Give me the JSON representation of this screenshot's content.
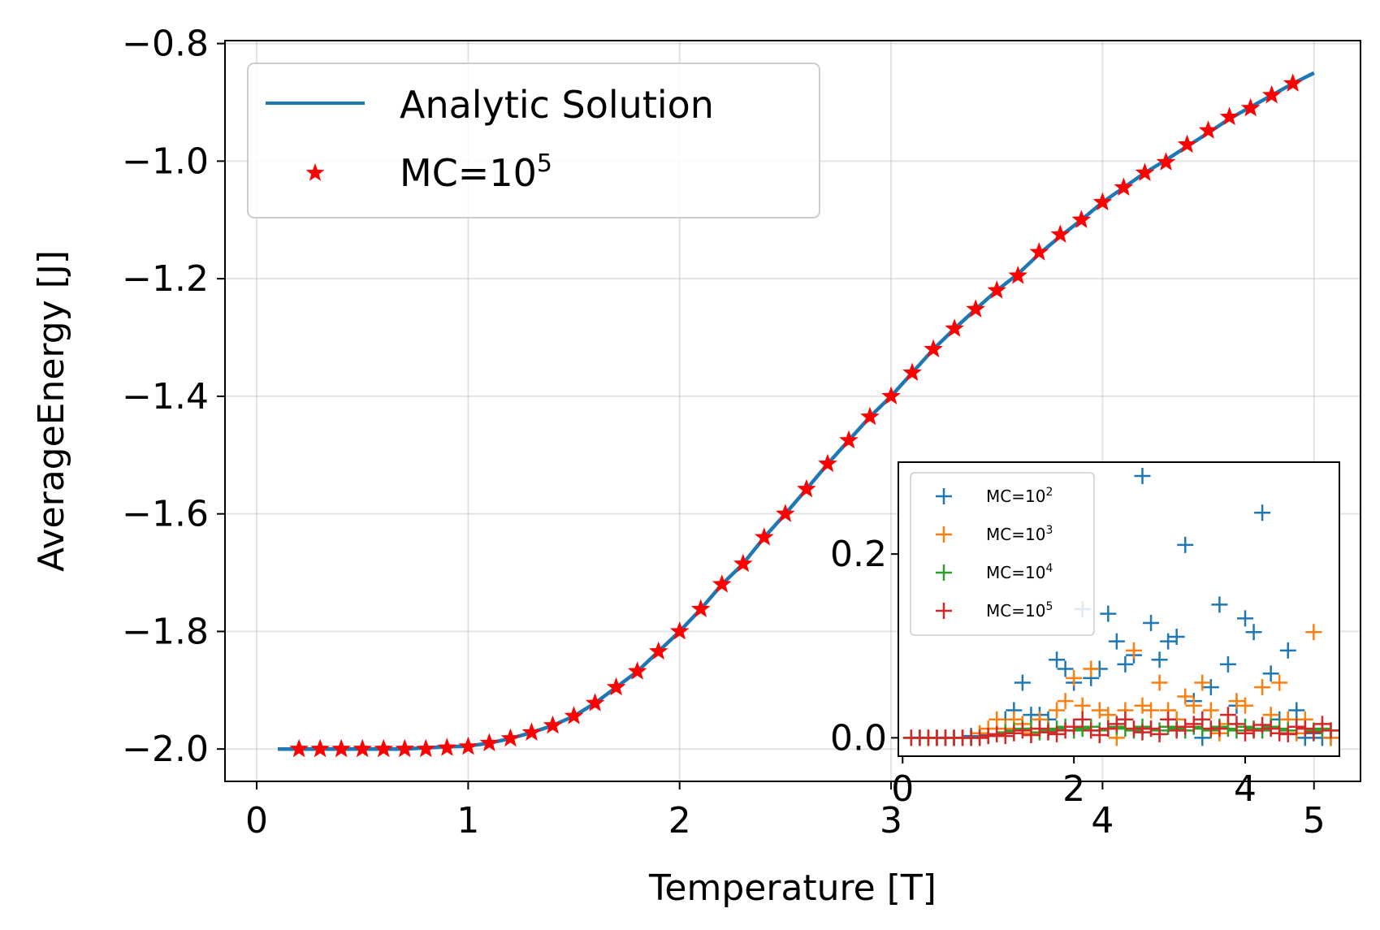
{
  "chart_data": [
    {
      "type": "line",
      "role": "main",
      "xlabel": "Temperature [T]",
      "ylabel": "AverageEnergy [J]",
      "xlim": [
        -0.15,
        5.22
      ],
      "ylim": [
        -2.055,
        -0.795
      ],
      "x_ticks": [
        0,
        1,
        2,
        3,
        4,
        5
      ],
      "x_tick_labels": [
        "0",
        "1",
        "2",
        "3",
        "4",
        "5"
      ],
      "y_ticks": [
        -2.0,
        -1.8,
        -1.6,
        -1.4,
        -1.2,
        -1.0,
        -0.8
      ],
      "y_tick_labels": [
        "−2.0",
        "−1.8",
        "−1.6",
        "−1.4",
        "−1.2",
        "−1.0",
        "−0.8"
      ],
      "grid": true,
      "legend_position": "upper-left",
      "series": [
        {
          "name": "Analytic Solution",
          "kind": "line",
          "color": "#1f77b4",
          "x": [
            0.1,
            0.2,
            0.3,
            0.4,
            0.5,
            0.6,
            0.7,
            0.8,
            0.9,
            1.0,
            1.1,
            1.2,
            1.3,
            1.4,
            1.5,
            1.6,
            1.7,
            1.8,
            1.9,
            2.0,
            2.1,
            2.2,
            2.3,
            2.4,
            2.5,
            2.6,
            2.7,
            2.8,
            2.9,
            3.0,
            3.1,
            3.2,
            3.3,
            3.4,
            3.5,
            3.6,
            3.7,
            3.8,
            3.9,
            4.0,
            4.1,
            4.2,
            4.3,
            4.4,
            4.5,
            4.6,
            4.7,
            4.8,
            4.9,
            5.0
          ],
          "y": [
            -2.0,
            -2.0,
            -2.0,
            -2.0,
            -2.0,
            -2.0,
            -2.0,
            -1.998,
            -1.996,
            -1.995,
            -1.99,
            -1.982,
            -1.972,
            -1.96,
            -1.944,
            -1.922,
            -1.895,
            -1.868,
            -1.834,
            -1.8,
            -1.762,
            -1.72,
            -1.685,
            -1.64,
            -1.6,
            -1.558,
            -1.515,
            -1.475,
            -1.435,
            -1.4,
            -1.36,
            -1.32,
            -1.285,
            -1.252,
            -1.22,
            -1.192,
            -1.158,
            -1.128,
            -1.1,
            -1.07,
            -1.045,
            -1.02,
            -0.998,
            -0.975,
            -0.952,
            -0.928,
            -0.908,
            -0.888,
            -0.868,
            -0.85
          ]
        },
        {
          "name": "MC=10",
          "name_superscript": "5",
          "kind": "star-marker",
          "color": "#ff0000",
          "x": [
            0.2,
            0.3,
            0.4,
            0.5,
            0.6,
            0.7,
            0.8,
            0.9,
            1.0,
            1.1,
            1.2,
            1.3,
            1.4,
            1.5,
            1.6,
            1.7,
            1.8,
            1.9,
            2.0,
            2.1,
            2.2,
            2.3,
            2.4,
            2.5,
            2.6,
            2.7,
            2.8,
            2.9,
            3.0,
            3.1,
            3.2,
            3.3,
            3.4,
            3.5,
            3.6,
            3.7,
            3.8,
            3.9,
            4.0,
            4.1,
            4.2,
            4.3,
            4.4,
            4.5,
            4.6,
            4.7,
            4.8,
            4.9
          ],
          "y": [
            -2.0,
            -2.0,
            -2.0,
            -2.0,
            -2.0,
            -2.0,
            -2.0,
            -1.998,
            -1.996,
            -1.99,
            -1.982,
            -1.972,
            -1.96,
            -1.944,
            -1.922,
            -1.895,
            -1.868,
            -1.834,
            -1.8,
            -1.762,
            -1.72,
            -1.685,
            -1.64,
            -1.6,
            -1.558,
            -1.515,
            -1.475,
            -1.435,
            -1.4,
            -1.36,
            -1.32,
            -1.285,
            -1.252,
            -1.22,
            -1.195,
            -1.155,
            -1.125,
            -1.1,
            -1.07,
            -1.045,
            -1.02,
            -1.002,
            -0.972,
            -0.948,
            -0.925,
            -0.91,
            -0.888,
            -0.868
          ]
        }
      ]
    },
    {
      "type": "scatter",
      "role": "inset",
      "legend_position": "upper-left",
      "xlim": [
        -0.05,
        5.1
      ],
      "ylim": [
        -0.02,
        0.3
      ],
      "x_ticks": [
        0,
        2,
        4
      ],
      "x_tick_labels": [
        "0",
        "2",
        "4"
      ],
      "y_ticks": [
        0.0,
        0.2
      ],
      "y_tick_labels": [
        "0.0",
        "0.2"
      ],
      "grid": false,
      "series": [
        {
          "name": "MC=10",
          "name_superscript": "2",
          "color": "#1f77b4",
          "x": [
            0.1,
            0.2,
            0.3,
            0.4,
            0.5,
            0.6,
            0.7,
            0.8,
            0.9,
            1.0,
            1.1,
            1.2,
            1.3,
            1.4,
            1.5,
            1.6,
            1.7,
            1.8,
            1.9,
            2.0,
            2.1,
            2.2,
            2.3,
            2.4,
            2.5,
            2.6,
            2.7,
            2.8,
            2.9,
            3.0,
            3.1,
            3.2,
            3.3,
            3.4,
            3.5,
            3.6,
            3.7,
            3.8,
            3.9,
            4.0,
            4.1,
            4.2,
            4.3,
            4.4,
            4.5,
            4.6,
            4.7,
            4.8,
            4.9,
            5.0
          ],
          "y": [
            0.0,
            0.0,
            0.0,
            0.0,
            0.0,
            0.0,
            0.0,
            0.002,
            0.0,
            0.003,
            0.01,
            0.02,
            0.03,
            0.06,
            0.025,
            0.025,
            0.02,
            0.085,
            0.075,
            0.06,
            0.14,
            0.065,
            0.075,
            0.135,
            0.105,
            0.08,
            0.09,
            0.285,
            0.125,
            0.085,
            0.105,
            0.11,
            0.21,
            0.04,
            0.0,
            0.055,
            0.145,
            0.08,
            0.035,
            0.13,
            0.115,
            0.245,
            0.07,
            0.02,
            0.095,
            0.03,
            0.0,
            0.005,
            0.0,
            0.0
          ]
        },
        {
          "name": "MC=10",
          "name_superscript": "3",
          "color": "#ff7f0e",
          "x": [
            0.1,
            0.2,
            0.3,
            0.4,
            0.5,
            0.6,
            0.7,
            0.8,
            0.9,
            1.0,
            1.1,
            1.2,
            1.3,
            1.4,
            1.5,
            1.6,
            1.7,
            1.8,
            1.9,
            2.0,
            2.1,
            2.2,
            2.3,
            2.4,
            2.5,
            2.6,
            2.7,
            2.8,
            2.9,
            3.0,
            3.1,
            3.2,
            3.3,
            3.4,
            3.5,
            3.6,
            3.7,
            3.8,
            3.9,
            4.0,
            4.1,
            4.2,
            4.3,
            4.4,
            4.5,
            4.6,
            4.7,
            4.8,
            4.9,
            5.0
          ],
          "y": [
            0.0,
            0.0,
            0.0,
            0.0,
            0.0,
            0.0,
            0.0,
            0.0,
            0.005,
            0.01,
            0.02,
            0.01,
            0.02,
            0.015,
            0.005,
            0.02,
            0.01,
            0.03,
            0.04,
            0.065,
            0.035,
            0.075,
            0.03,
            0.025,
            0.0,
            0.03,
            0.095,
            0.035,
            0.03,
            0.06,
            0.03,
            0.02,
            0.045,
            0.035,
            0.06,
            0.03,
            0.005,
            0.015,
            0.04,
            0.035,
            0.01,
            0.055,
            0.025,
            0.06,
            0.02,
            0.005,
            0.02,
            0.115,
            0.01,
            0.0
          ]
        },
        {
          "name": "MC=10",
          "name_superscript": "4",
          "color": "#2ca02c",
          "x": [
            0.1,
            0.2,
            0.3,
            0.4,
            0.5,
            0.6,
            0.7,
            0.8,
            0.9,
            1.0,
            1.1,
            1.2,
            1.3,
            1.4,
            1.5,
            1.6,
            1.7,
            1.8,
            1.9,
            2.0,
            2.1,
            2.2,
            2.3,
            2.4,
            2.5,
            2.6,
            2.7,
            2.8,
            2.9,
            3.0,
            3.1,
            3.2,
            3.3,
            3.4,
            3.5,
            3.6,
            3.7,
            3.8,
            3.9,
            4.0,
            4.1,
            4.2,
            4.3,
            4.4,
            4.5,
            4.6,
            4.7,
            4.8,
            4.9,
            5.0
          ],
          "y": [
            0.0,
            0.0,
            0.0,
            0.0,
            0.0,
            0.0,
            0.0,
            0.0,
            0.0,
            0.002,
            0.004,
            0.006,
            0.008,
            0.01,
            0.01,
            0.006,
            0.008,
            0.01,
            0.012,
            0.008,
            0.01,
            0.012,
            0.008,
            0.01,
            0.012,
            0.01,
            0.008,
            0.012,
            0.01,
            0.008,
            0.012,
            0.01,
            0.008,
            0.012,
            0.01,
            0.008,
            0.012,
            0.01,
            0.008,
            0.012,
            0.01,
            0.008,
            0.012,
            0.01,
            0.008,
            0.012,
            0.01,
            0.008,
            0.01,
            0.008
          ]
        },
        {
          "name": "MC=10",
          "name_superscript": "5",
          "color": "#d62728",
          "x": [
            0.1,
            0.2,
            0.3,
            0.4,
            0.5,
            0.6,
            0.7,
            0.8,
            0.9,
            1.0,
            1.1,
            1.2,
            1.3,
            1.4,
            1.5,
            1.6,
            1.7,
            1.8,
            1.9,
            2.0,
            2.1,
            2.2,
            2.3,
            2.4,
            2.5,
            2.6,
            2.7,
            2.8,
            2.9,
            3.0,
            3.1,
            3.2,
            3.3,
            3.4,
            3.5,
            3.6,
            3.7,
            3.8,
            3.9,
            4.0,
            4.1,
            4.2,
            4.3,
            4.4,
            4.5,
            4.6,
            4.7,
            4.8,
            4.9,
            5.0
          ],
          "y": [
            0.0,
            0.0,
            0.0,
            0.0,
            0.0,
            0.0,
            0.0,
            0.0,
            0.0,
            0.002,
            0.004,
            0.002,
            0.005,
            0.008,
            0.003,
            0.01,
            0.006,
            0.004,
            0.008,
            0.012,
            0.02,
            0.008,
            0.003,
            0.01,
            0.015,
            0.02,
            0.01,
            0.006,
            0.01,
            0.004,
            0.02,
            0.008,
            0.012,
            0.015,
            0.02,
            0.01,
            0.01,
            0.025,
            0.015,
            0.005,
            0.008,
            0.014,
            0.01,
            0.005,
            0.004,
            0.012,
            0.01,
            0.006,
            0.015,
            0.008
          ]
        }
      ]
    }
  ]
}
